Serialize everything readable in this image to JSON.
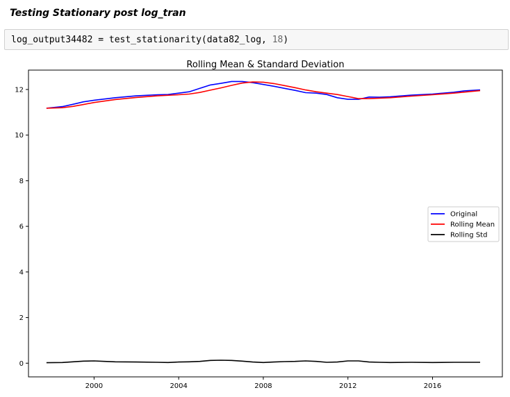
{
  "markdown": {
    "heading": "Testing Stationary post log_tran"
  },
  "code_cell": {
    "code_prefix": "log_output34482 = test_stationarity(data82_log, ",
    "code_number": "18",
    "code_suffix": ")"
  },
  "chart_data": {
    "type": "line",
    "title": "Rolling Mean & Standard Deviation",
    "xlabel": "",
    "ylabel": "",
    "xlim": [
      1996.9,
      2019.3
    ],
    "ylim": [
      -0.6,
      12.85
    ],
    "x_ticks": [
      2000,
      2004,
      2008,
      2012,
      2016
    ],
    "x_tick_labels": [
      "2000",
      "2004",
      "2008",
      "2012",
      "2016"
    ],
    "y_ticks": [
      0,
      2,
      4,
      6,
      8,
      10,
      12
    ],
    "y_tick_labels": [
      "0",
      "2",
      "4",
      "6",
      "8",
      "10",
      "12"
    ],
    "legend_position": "center-right",
    "grid": false,
    "series": [
      {
        "name": "Original",
        "color": "#0000ff",
        "x": [
          1997.75,
          1998.5,
          1999,
          1999.5,
          2000,
          2001,
          2002,
          2003,
          2003.5,
          2004,
          2004.5,
          2005,
          2005.5,
          2006,
          2006.5,
          2007,
          2007.5,
          2008,
          2008.5,
          2009,
          2009.5,
          2010,
          2010.5,
          2011,
          2011.5,
          2012,
          2012.5,
          2013,
          2013.5,
          2014,
          2015,
          2016,
          2017,
          2017.5,
          2018.25
        ],
        "y": [
          11.18,
          11.25,
          11.35,
          11.46,
          11.53,
          11.64,
          11.72,
          11.77,
          11.78,
          11.84,
          11.9,
          12.05,
          12.2,
          12.27,
          12.35,
          12.35,
          12.3,
          12.22,
          12.14,
          12.05,
          11.96,
          11.86,
          11.84,
          11.78,
          11.64,
          11.57,
          11.57,
          11.67,
          11.66,
          11.68,
          11.75,
          11.8,
          11.88,
          11.94,
          11.98
        ]
      },
      {
        "name": "Rolling Mean",
        "color": "#ff0000",
        "x": [
          1997.75,
          1998.5,
          1999,
          1999.5,
          2000,
          2001,
          2002,
          2003,
          2004,
          2004.5,
          2005,
          2005.5,
          2006,
          2006.5,
          2007,
          2007.5,
          2008,
          2008.5,
          2009,
          2009.5,
          2010,
          2010.5,
          2011,
          2011.5,
          2012,
          2012.5,
          2013,
          2014,
          2015,
          2016,
          2017,
          2018.25
        ],
        "y": [
          11.18,
          11.2,
          11.26,
          11.34,
          11.43,
          11.56,
          11.65,
          11.72,
          11.77,
          11.8,
          11.87,
          11.97,
          12.07,
          12.18,
          12.28,
          12.33,
          12.32,
          12.26,
          12.17,
          12.08,
          11.98,
          11.9,
          11.84,
          11.78,
          11.69,
          11.6,
          11.6,
          11.64,
          11.71,
          11.77,
          11.84,
          11.95
        ]
      },
      {
        "name": "Rolling Std",
        "color": "#000000",
        "x": [
          1997.75,
          1998.5,
          1999,
          1999.5,
          2000,
          2000.5,
          2001,
          2002,
          2003,
          2003.5,
          2004,
          2004.5,
          2005,
          2005.5,
          2006,
          2006.5,
          2007,
          2007.5,
          2008,
          2008.5,
          2009,
          2009.5,
          2010,
          2010.5,
          2011,
          2011.5,
          2012,
          2012.5,
          2013,
          2013.5,
          2014,
          2015,
          2016,
          2017,
          2018.25
        ],
        "y": [
          0.02,
          0.03,
          0.06,
          0.09,
          0.1,
          0.08,
          0.06,
          0.05,
          0.04,
          0.03,
          0.05,
          0.06,
          0.08,
          0.12,
          0.13,
          0.12,
          0.09,
          0.05,
          0.03,
          0.05,
          0.07,
          0.08,
          0.1,
          0.08,
          0.04,
          0.05,
          0.1,
          0.1,
          0.05,
          0.04,
          0.03,
          0.04,
          0.03,
          0.04,
          0.04
        ]
      }
    ]
  }
}
